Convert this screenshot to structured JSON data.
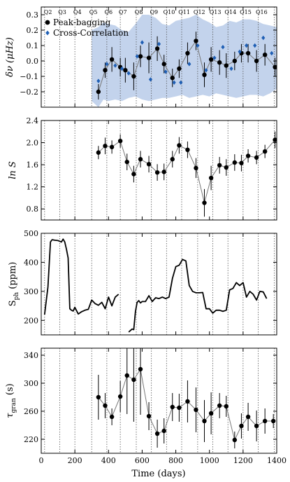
{
  "chart_data": [
    {
      "type": "scatter",
      "ylabel": "δν (μHz)",
      "xlim": [
        0,
        1400
      ],
      "ylim": [
        -0.3,
        0.35
      ],
      "yticks": [
        -0.2,
        -0.1,
        0.0,
        0.1,
        0.2,
        0.3
      ],
      "xticks": [
        0,
        200,
        400,
        600,
        800,
        1000,
        1200,
        1400
      ],
      "quarter_lines": [
        20,
        110,
        200,
        300,
        390,
        470,
        565,
        655,
        745,
        835,
        930,
        1020,
        1110,
        1200,
        1290,
        1385
      ],
      "quarters": [
        {
          "label": "Q2",
          "x": 40
        },
        {
          "label": "Q3",
          "x": 125
        },
        {
          "label": "Q4",
          "x": 215
        },
        {
          "label": "Q5",
          "x": 310
        },
        {
          "label": "Q6",
          "x": 400
        },
        {
          "label": "Q7",
          "x": 485
        },
        {
          "label": "Q8",
          "x": 580
        },
        {
          "label": "Q9",
          "x": 670
        },
        {
          "label": "Q10",
          "x": 760
        },
        {
          "label": "Q11",
          "x": 850
        },
        {
          "label": "Q12",
          "x": 940
        },
        {
          "label": "Q13",
          "x": 1035
        },
        {
          "label": "Q14",
          "x": 1125
        },
        {
          "label": "Q15",
          "x": 1215
        },
        {
          "label": "Q16",
          "x": 1310
        }
      ],
      "legend": {
        "position": "top-left",
        "entries": [
          {
            "label": "Peak-bagging",
            "marker": "circle",
            "color": "#000000"
          },
          {
            "label": "Cross-Correlation",
            "marker": "diamond",
            "color": "#1f5fb4"
          }
        ]
      },
      "band": {
        "x": [
          300,
          340,
          370,
          400,
          440,
          480,
          520,
          560,
          600,
          640,
          680,
          720,
          760,
          800,
          840,
          880,
          920,
          960,
          1000,
          1040,
          1080,
          1120,
          1160,
          1200,
          1240,
          1280,
          1320,
          1360,
          1400
        ],
        "upper": [
          0.2,
          0.22,
          0.25,
          0.24,
          0.23,
          0.2,
          0.19,
          0.24,
          0.3,
          0.3,
          0.28,
          0.24,
          0.23,
          0.26,
          0.27,
          0.28,
          0.3,
          0.27,
          0.25,
          0.22,
          0.23,
          0.26,
          0.25,
          0.27,
          0.27,
          0.26,
          0.24,
          0.23,
          0.22
        ],
        "lower": [
          -0.26,
          -0.3,
          -0.25,
          -0.26,
          -0.25,
          -0.26,
          -0.24,
          -0.23,
          -0.25,
          -0.26,
          -0.25,
          -0.24,
          -0.24,
          -0.23,
          -0.22,
          -0.24,
          -0.23,
          -0.22,
          -0.23,
          -0.21,
          -0.22,
          -0.23,
          -0.24,
          -0.23,
          -0.22,
          -0.22,
          -0.23,
          -0.21,
          -0.18
        ]
      },
      "series": [
        {
          "name": "Peak-bagging",
          "marker": "circle",
          "color": "#000000",
          "connect": true,
          "x": [
            340,
            380,
            420,
            470,
            500,
            550,
            590,
            640,
            690,
            730,
            780,
            820,
            870,
            920,
            970,
            1010,
            1060,
            1100,
            1150,
            1190,
            1230,
            1280,
            1330,
            1390
          ],
          "y": [
            -0.2,
            -0.06,
            0.01,
            -0.04,
            -0.06,
            -0.1,
            0.03,
            0.02,
            0.08,
            -0.02,
            -0.11,
            -0.05,
            0.05,
            0.13,
            -0.09,
            0.01,
            -0.01,
            -0.03,
            0.0,
            0.05,
            0.05,
            0.0,
            0.04,
            -0.04
          ],
          "err": [
            0.05,
            0.05,
            0.08,
            0.06,
            0.08,
            0.09,
            0.07,
            0.1,
            0.08,
            0.06,
            0.06,
            0.06,
            0.07,
            0.06,
            0.08,
            0.08,
            0.08,
            0.08,
            0.06,
            0.06,
            0.06,
            0.07,
            0.07,
            0.06
          ]
        },
        {
          "name": "Cross-Correlation",
          "marker": "diamond",
          "color": "#1f5fb4",
          "connect": false,
          "x": [
            340,
            390,
            440,
            480,
            520,
            570,
            600,
            650,
            700,
            740,
            790,
            830,
            880,
            930,
            980,
            1030,
            1080,
            1130,
            1180,
            1220,
            1270,
            1320,
            1370
          ],
          "y": [
            -0.13,
            -0.02,
            -0.03,
            -0.05,
            -0.08,
            0.03,
            0.12,
            -0.12,
            0.11,
            -0.07,
            -0.14,
            -0.14,
            -0.02,
            0.1,
            -0.06,
            0.02,
            0.09,
            -0.05,
            0.06,
            0.1,
            0.1,
            0.15,
            0.05
          ]
        }
      ]
    },
    {
      "type": "scatter",
      "ylabel": "ln S",
      "xlim": [
        0,
        1400
      ],
      "ylim": [
        0.6,
        2.4
      ],
      "yticks": [
        0.8,
        1.2,
        1.6,
        2.0,
        2.4
      ],
      "xticks": [
        0,
        200,
        400,
        600,
        800,
        1000,
        1200,
        1400
      ],
      "series": [
        {
          "name": "",
          "marker": "circle",
          "color": "#000000",
          "connect": true,
          "x": [
            340,
            380,
            420,
            470,
            510,
            550,
            590,
            640,
            690,
            730,
            780,
            820,
            870,
            920,
            970,
            1010,
            1060,
            1100,
            1150,
            1190,
            1230,
            1280,
            1330,
            1390
          ],
          "y": [
            1.82,
            1.94,
            1.92,
            2.03,
            1.65,
            1.43,
            1.7,
            1.61,
            1.46,
            1.47,
            1.7,
            1.95,
            1.87,
            1.54,
            0.91,
            1.36,
            1.59,
            1.55,
            1.64,
            1.63,
            1.76,
            1.73,
            1.84,
            2.05
          ],
          "err": [
            0.12,
            0.15,
            0.12,
            0.12,
            0.15,
            0.15,
            0.15,
            0.15,
            0.15,
            0.15,
            0.15,
            0.15,
            0.15,
            0.18,
            0.25,
            0.22,
            0.15,
            0.15,
            0.15,
            0.15,
            0.12,
            0.12,
            0.12,
            0.15
          ]
        }
      ]
    },
    {
      "type": "line",
      "ylabel": "S",
      "ylabel_sub": "ph",
      "ylabel_unit": " (ppm)",
      "xlim": [
        0,
        1400
      ],
      "ylim": [
        150,
        500
      ],
      "yticks": [
        200,
        300,
        400,
        500
      ],
      "xticks": [
        0,
        200,
        400,
        600,
        800,
        1000,
        1200,
        1400
      ],
      "segments": [
        {
          "x": [
            20,
            40,
            55,
            65,
            80,
            100,
            120,
            130,
            140,
            150,
            160,
            170,
            180,
            190,
            200,
            220,
            240,
            260,
            280,
            300,
            320,
            340,
            360,
            380,
            400,
            420,
            440,
            460
          ],
          "y": [
            220,
            315,
            470,
            478,
            476,
            475,
            470,
            480,
            470,
            445,
            415,
            240,
            235,
            232,
            245,
            222,
            230,
            235,
            238,
            270,
            258,
            252,
            262,
            240,
            280,
            250,
            280,
            290
          ]
        },
        {
          "x": [
            520,
            540,
            550,
            560,
            570,
            580,
            590,
            600,
            620,
            640,
            660,
            680,
            700,
            720,
            740,
            760,
            780,
            800,
            820,
            840,
            860,
            880,
            900,
            920,
            940,
            960,
            980,
            1000,
            1020,
            1040,
            1060,
            1080,
            1100,
            1120,
            1140,
            1160,
            1180,
            1200,
            1220,
            1240,
            1260,
            1280,
            1300,
            1320,
            1340
          ],
          "y": [
            160,
            170,
            168,
            230,
            262,
            268,
            260,
            265,
            265,
            285,
            265,
            278,
            275,
            280,
            275,
            280,
            345,
            385,
            390,
            410,
            405,
            320,
            300,
            295,
            295,
            296,
            240,
            240,
            225,
            235,
            235,
            231,
            235,
            305,
            310,
            330,
            320,
            330,
            280,
            300,
            290,
            270,
            300,
            298,
            275
          ]
        }
      ]
    },
    {
      "type": "scatter",
      "ylabel": "τ",
      "ylabel_sub": "gran",
      "ylabel_unit": " (s)",
      "xlabel": "Time (days)",
      "xlim": [
        0,
        1400
      ],
      "ylim": [
        200,
        350
      ],
      "yticks": [
        220,
        260,
        300,
        340
      ],
      "xticks": [
        0,
        200,
        400,
        600,
        800,
        1000,
        1200,
        1400
      ],
      "series": [
        {
          "name": "",
          "marker": "circle",
          "color": "#000000",
          "connect": true,
          "x": [
            340,
            380,
            420,
            470,
            510,
            550,
            590,
            640,
            690,
            730,
            780,
            820,
            870,
            920,
            970,
            1010,
            1060,
            1100,
            1150,
            1190,
            1230,
            1280,
            1330,
            1380
          ],
          "y": [
            280,
            268,
            252,
            281,
            311,
            305,
            320,
            253,
            228,
            232,
            266,
            265,
            274,
            262,
            246,
            257,
            268,
            267,
            219,
            239,
            252,
            239,
            246,
            246
          ],
          "err": [
            32,
            18,
            12,
            22,
            55,
            60,
            65,
            20,
            20,
            18,
            20,
            20,
            30,
            32,
            30,
            30,
            18,
            15,
            12,
            18,
            20,
            22,
            18,
            10
          ]
        }
      ]
    }
  ]
}
